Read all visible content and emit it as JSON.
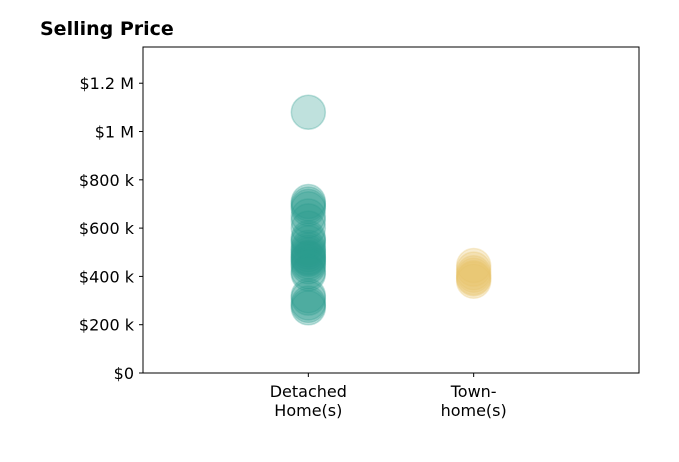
{
  "chart_data": {
    "type": "scatter",
    "title": "Selling Price",
    "xlabel": "",
    "ylabel": "",
    "categories": [
      [
        "Detached",
        "Home(s)"
      ],
      [
        "Town-",
        "home(s)"
      ]
    ],
    "xlim": [
      -1,
      2
    ],
    "ylim": [
      0,
      1350000
    ],
    "yticks": [
      0,
      200000,
      400000,
      600000,
      800000,
      1000000,
      1200000
    ],
    "ytick_labels": [
      "$0",
      "$200 k",
      "$400 k",
      "$600 k",
      "$800 k",
      "$1 M",
      "$1.2 M"
    ],
    "grid": false,
    "marker_alpha": 0.3,
    "series": [
      {
        "color": "#2a9d8f",
        "category_index": 0,
        "values": [
          1080000,
          710000,
          700000,
          690000,
          680000,
          650000,
          630000,
          600000,
          560000,
          550000,
          540000,
          520000,
          510000,
          500000,
          490000,
          480000,
          475000,
          470000,
          460000,
          450000,
          440000,
          420000,
          410000,
          320000,
          310000,
          290000,
          280000,
          270000
        ]
      },
      {
        "color": "#e9c46a",
        "category_index": 1,
        "values": [
          445000,
          430000,
          415000,
          405000,
          395000,
          390000,
          380000
        ]
      }
    ]
  }
}
